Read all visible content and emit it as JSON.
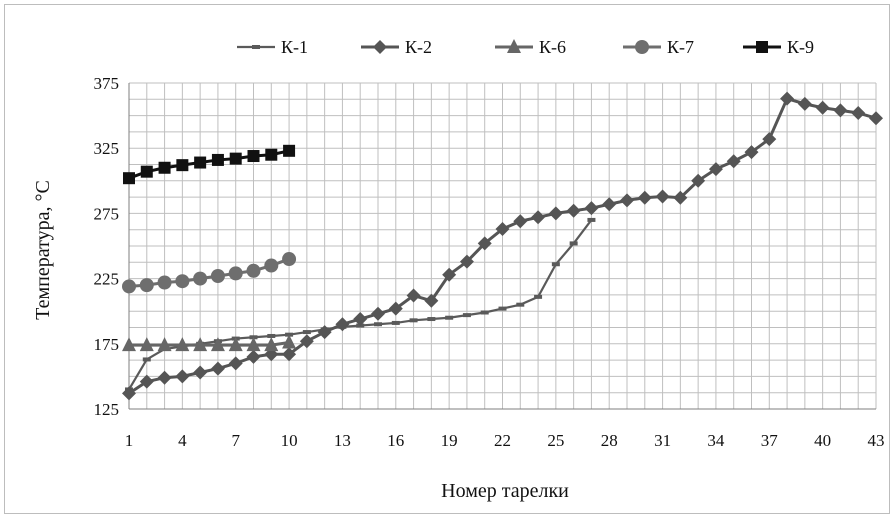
{
  "chart_data": {
    "type": "line",
    "xlabel": "Номер тарелки",
    "ylabel": "Температура, °С",
    "xlim": [
      1,
      43
    ],
    "ylim": [
      125,
      375
    ],
    "xticks": [
      1,
      4,
      7,
      10,
      13,
      16,
      19,
      22,
      25,
      28,
      31,
      34,
      37,
      40,
      43
    ],
    "yticks": [
      125,
      175,
      225,
      275,
      325,
      375
    ],
    "grid": true,
    "legend_position": "top",
    "series": [
      {
        "name": "К-1",
        "marker": "dash",
        "color": "#5a5a5a",
        "x": [
          1,
          2,
          3,
          4,
          5,
          6,
          7,
          8,
          9,
          10,
          11,
          12,
          13,
          14,
          15,
          16,
          17,
          18,
          19,
          20,
          21,
          22,
          23,
          24,
          25,
          26,
          27
        ],
        "y": [
          140,
          163,
          171,
          173,
          175,
          177,
          179,
          180,
          181,
          182,
          184,
          186,
          188,
          189,
          190,
          191,
          193,
          194,
          195,
          197,
          199,
          202,
          205,
          211,
          236,
          252,
          270
        ]
      },
      {
        "name": "К-2",
        "marker": "diamond",
        "color": "#555555",
        "x": [
          1,
          2,
          3,
          4,
          5,
          6,
          7,
          8,
          9,
          10,
          11,
          12,
          13,
          14,
          15,
          16,
          17,
          18,
          19,
          20,
          21,
          22,
          23,
          24,
          25,
          26,
          27,
          28,
          29,
          30,
          31,
          32,
          33,
          34,
          35,
          36,
          37,
          38,
          39,
          40,
          41,
          42,
          43
        ],
        "y": [
          137,
          146,
          149,
          150,
          153,
          156,
          160,
          165,
          167,
          167,
          177,
          184,
          190,
          194,
          198,
          202,
          212,
          208,
          228,
          238,
          252,
          263,
          269,
          272,
          275,
          277,
          279,
          282,
          285,
          287,
          288,
          287,
          300,
          309,
          315,
          322,
          332,
          363,
          359,
          356,
          354,
          352,
          348
        ]
      },
      {
        "name": "К-6",
        "marker": "triangle",
        "color": "#666666",
        "x": [
          1,
          2,
          3,
          4,
          5,
          6,
          7,
          8,
          9,
          10
        ],
        "y": [
          174,
          174,
          174,
          174,
          174,
          174,
          174,
          174,
          174,
          176
        ]
      },
      {
        "name": "К-7",
        "marker": "circle",
        "color": "#6e6e6e",
        "x": [
          1,
          2,
          3,
          4,
          5,
          6,
          7,
          8,
          9,
          10
        ],
        "y": [
          219,
          220,
          222,
          223,
          225,
          227,
          229,
          231,
          235,
          240
        ]
      },
      {
        "name": "К-9",
        "marker": "square",
        "color": "#111111",
        "x": [
          1,
          2,
          3,
          4,
          5,
          6,
          7,
          8,
          9,
          10
        ],
        "y": [
          302,
          307,
          310,
          312,
          314,
          316,
          317,
          319,
          320,
          323
        ]
      }
    ]
  }
}
